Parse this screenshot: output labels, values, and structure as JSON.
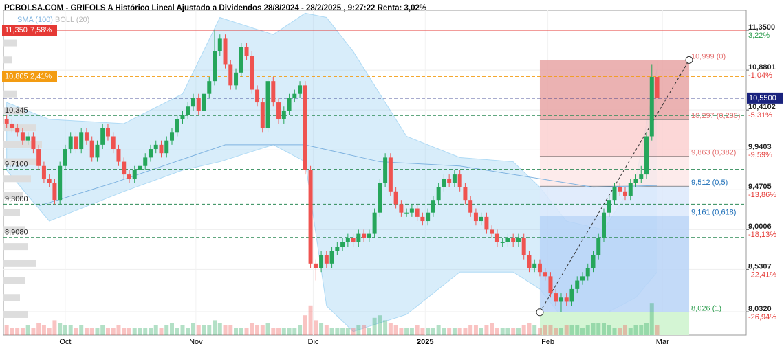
{
  "chart_data": {
    "type": "candlestick",
    "title": "PCBOLSA.COM - GRIFOLS A Histórico Lineal Ajustado a Dividendos 28/8/2024 - 28/2/2025 , 9:27:22 Renta: 3,02%",
    "legend": [
      "SMA (100)",
      "BOLL (20)"
    ],
    "ylim": [
      7.757,
      11.585
    ],
    "xlim": [
      -0.6,
      138.7
    ],
    "yticks": [
      {
        "value": 11.35,
        "label": "11,3500"
      },
      {
        "value": 10.8801,
        "label": "10,8801"
      },
      {
        "value": 10.4102,
        "label": "10,4102"
      },
      {
        "value": 9.9403,
        "label": "9,9403"
      },
      {
        "value": 9.4705,
        "label": "9,4705"
      },
      {
        "value": 9.0006,
        "label": "9,0006"
      },
      {
        "value": 8.5307,
        "label": "8,5307"
      },
      {
        "value": 8.032,
        "label": "8,0320"
      }
    ],
    "ytick_pcts": [
      "3,22%",
      "-1,04%",
      "-5,31%",
      "-9,59%",
      "-13,86%",
      "-18,13%",
      "-22,41%",
      "-26,94%"
    ],
    "xticks": [
      {
        "value": 11,
        "label": "Oct"
      },
      {
        "value": 35.5,
        "label": "Nov"
      },
      {
        "value": 57.5,
        "label": "Dic"
      },
      {
        "value": 78.5,
        "label": "2025"
      },
      {
        "value": 101.5,
        "label": "Feb"
      },
      {
        "value": 123,
        "label": "Mar"
      }
    ],
    "grid": true,
    "up_color": "#26a65b",
    "down_color": "#ef5350",
    "open": [
      10.3,
      10.25,
      10.2,
      10.15,
      10.05,
      10.1,
      9.95,
      9.75,
      9.6,
      9.55,
      9.35,
      9.75,
      9.95,
      10.1,
      9.95,
      10.15,
      10.05,
      9.85,
      10.0,
      10.2,
      10.1,
      9.95,
      9.8,
      9.65,
      9.6,
      9.7,
      9.75,
      9.85,
      9.95,
      10.0,
      9.9,
      10.05,
      10.15,
      10.3,
      10.35,
      10.45,
      10.55,
      10.4,
      10.6,
      10.75,
      11.1,
      11.25,
      10.95,
      10.7,
      10.85,
      11.15,
      11.05,
      10.65,
      10.5,
      10.2,
      10.75,
      10.5,
      10.3,
      10.4,
      10.55,
      10.6,
      10.7,
      9.7,
      8.6,
      8.55,
      8.7,
      8.6,
      8.75,
      8.8,
      8.85,
      8.9,
      8.85,
      8.95,
      8.9,
      8.95,
      9.2,
      9.55,
      9.85,
      9.45,
      9.3,
      9.2,
      9.2,
      9.25,
      9.15,
      9.1,
      9.2,
      9.35,
      9.5,
      9.6,
      9.55,
      9.65,
      9.5,
      9.35,
      9.2,
      9.1,
      9.15,
      9.0,
      8.95,
      8.85,
      8.85,
      8.9,
      8.85,
      8.9,
      8.7,
      8.55,
      8.6,
      8.5,
      8.45,
      8.25,
      8.15,
      8.2,
      8.15,
      8.3,
      8.4,
      8.45,
      8.55,
      8.7,
      8.9,
      9.2,
      9.35,
      9.5,
      9.45,
      9.4,
      9.55,
      9.6,
      9.65,
      10.1,
      10.8
    ],
    "high": [
      10.35,
      10.3,
      10.25,
      10.2,
      10.15,
      10.15,
      10.0,
      9.8,
      9.65,
      9.6,
      9.8,
      10.0,
      10.15,
      10.15,
      10.2,
      10.2,
      10.1,
      10.05,
      10.25,
      10.25,
      10.15,
      10.0,
      9.85,
      9.7,
      9.75,
      9.8,
      9.9,
      10.0,
      10.05,
      10.05,
      10.1,
      10.2,
      10.35,
      10.4,
      10.5,
      10.6,
      10.6,
      10.65,
      10.8,
      11.35,
      11.3,
      11.3,
      11.0,
      10.9,
      11.2,
      11.2,
      11.1,
      10.7,
      10.55,
      10.8,
      10.8,
      10.55,
      10.45,
      10.6,
      10.65,
      10.75,
      10.75,
      9.75,
      8.65,
      8.75,
      8.75,
      8.8,
      8.85,
      8.9,
      8.95,
      8.95,
      9.0,
      9.0,
      9.0,
      9.25,
      9.6,
      9.9,
      9.9,
      9.5,
      9.35,
      9.25,
      9.3,
      9.3,
      9.2,
      9.25,
      9.4,
      9.55,
      9.65,
      9.65,
      9.7,
      9.7,
      9.55,
      9.4,
      9.25,
      9.2,
      9.2,
      9.05,
      9.0,
      8.9,
      8.95,
      8.95,
      8.95,
      8.95,
      8.75,
      8.65,
      8.65,
      8.55,
      8.5,
      8.3,
      8.25,
      8.25,
      8.35,
      8.45,
      8.5,
      8.6,
      8.75,
      8.95,
      9.25,
      9.4,
      9.55,
      9.55,
      9.5,
      9.6,
      9.65,
      9.75,
      10.15,
      10.95,
      10.99
    ],
    "low": [
      10.2,
      10.15,
      10.1,
      10.0,
      10.0,
      9.9,
      9.7,
      9.55,
      9.5,
      9.3,
      9.3,
      9.7,
      9.9,
      9.9,
      9.9,
      10.0,
      9.8,
      9.8,
      9.95,
      10.05,
      9.9,
      9.75,
      9.6,
      9.55,
      9.55,
      9.65,
      9.7,
      9.8,
      9.9,
      9.85,
      9.85,
      10.0,
      10.1,
      10.25,
      10.3,
      10.4,
      10.35,
      10.35,
      10.55,
      10.7,
      11.05,
      10.9,
      10.65,
      10.65,
      10.8,
      11.0,
      10.6,
      10.45,
      10.15,
      10.15,
      10.45,
      10.25,
      10.25,
      10.35,
      10.5,
      10.55,
      9.65,
      8.55,
      8.4,
      8.5,
      8.55,
      8.55,
      8.7,
      8.75,
      8.8,
      8.8,
      8.8,
      8.85,
      8.85,
      8.9,
      9.15,
      9.5,
      9.4,
      9.25,
      9.15,
      9.15,
      9.15,
      9.1,
      9.05,
      9.05,
      9.15,
      9.3,
      9.45,
      9.5,
      9.5,
      9.45,
      9.3,
      9.15,
      9.05,
      9.05,
      8.95,
      8.9,
      8.8,
      8.8,
      8.8,
      8.8,
      8.8,
      8.65,
      8.5,
      8.5,
      8.45,
      8.4,
      8.2,
      8.1,
      8.03,
      8.1,
      8.1,
      8.25,
      8.35,
      8.4,
      8.5,
      8.65,
      8.85,
      9.15,
      9.3,
      9.4,
      9.35,
      9.35,
      9.5,
      9.55,
      9.6,
      10.05,
      10.5
    ],
    "close": [
      10.25,
      10.2,
      10.15,
      10.05,
      10.1,
      9.95,
      9.75,
      9.6,
      9.55,
      9.35,
      9.75,
      9.95,
      10.1,
      9.95,
      10.15,
      10.05,
      9.85,
      10.0,
      10.2,
      10.1,
      9.95,
      9.8,
      9.65,
      9.6,
      9.7,
      9.75,
      9.85,
      9.95,
      10.0,
      9.9,
      10.05,
      10.15,
      10.3,
      10.35,
      10.45,
      10.55,
      10.4,
      10.6,
      10.75,
      11.1,
      11.25,
      10.95,
      10.7,
      10.85,
      11.15,
      11.05,
      10.65,
      10.5,
      10.2,
      10.75,
      10.5,
      10.3,
      10.4,
      10.55,
      10.6,
      10.7,
      9.7,
      8.6,
      8.55,
      8.7,
      8.6,
      8.75,
      8.8,
      8.85,
      8.9,
      8.85,
      8.95,
      8.9,
      8.95,
      9.2,
      9.55,
      9.85,
      9.45,
      9.3,
      9.2,
      9.2,
      9.25,
      9.15,
      9.1,
      9.2,
      9.35,
      9.5,
      9.6,
      9.55,
      9.65,
      9.5,
      9.35,
      9.2,
      9.1,
      9.15,
      9.0,
      8.95,
      8.85,
      8.85,
      8.9,
      8.85,
      8.9,
      8.7,
      8.55,
      8.6,
      8.5,
      8.45,
      8.25,
      8.15,
      8.2,
      8.15,
      8.3,
      8.4,
      8.45,
      8.55,
      8.7,
      8.9,
      9.2,
      9.35,
      9.5,
      9.45,
      9.4,
      9.55,
      9.6,
      9.65,
      10.1,
      10.8,
      10.55
    ],
    "volume": [
      4,
      3,
      3,
      3,
      4,
      3,
      5,
      4,
      3,
      6,
      5,
      4,
      4,
      3,
      4,
      3,
      3,
      3,
      4,
      3,
      3,
      4,
      3,
      3,
      3,
      3,
      3,
      3,
      4,
      3,
      4,
      5,
      3,
      4,
      3,
      5,
      4,
      4,
      4,
      6,
      5,
      4,
      4,
      3,
      3,
      3,
      5,
      4,
      4,
      5,
      3,
      3,
      3,
      3,
      3,
      4,
      8,
      12,
      6,
      5,
      4,
      3,
      3,
      3,
      3,
      3,
      4,
      4,
      3,
      7,
      8,
      6,
      5,
      4,
      3,
      3,
      3,
      4,
      3,
      3,
      3,
      4,
      3,
      3,
      3,
      3,
      3,
      4,
      4,
      3,
      4,
      5,
      3,
      3,
      3,
      3,
      3,
      4,
      5,
      4,
      3,
      4,
      4,
      3,
      3,
      4,
      4,
      4,
      3,
      4,
      5,
      5,
      5,
      4,
      3,
      3,
      4,
      3,
      4,
      4,
      5,
      13,
      4
    ],
    "volume_profile": {
      "prices": [
        11.2,
        11.0,
        10.8,
        10.6,
        10.4,
        10.2,
        10.0,
        9.8,
        9.6,
        9.4,
        9.2,
        9.0,
        8.8,
        8.6,
        8.4,
        8.2,
        8.0
      ],
      "values": [
        5,
        3,
        4,
        5,
        8,
        12,
        14,
        13,
        10,
        7,
        6,
        8,
        9,
        12,
        8,
        6,
        9
      ]
    },
    "bollinger": {
      "x": [
        0,
        8,
        22,
        33,
        40,
        50,
        56,
        60,
        65,
        75,
        85,
        95,
        100,
        105,
        112,
        118,
        122
      ],
      "upper": [
        10.5,
        10.3,
        10.25,
        10.6,
        11.5,
        11.3,
        11.55,
        11.5,
        11.1,
        10.1,
        9.85,
        9.8,
        9.5,
        9.1,
        9.0,
        9.6,
        10.9
      ],
      "lower": [
        9.7,
        9.1,
        9.45,
        9.7,
        9.8,
        10.0,
        9.8,
        8.1,
        7.8,
        8.0,
        8.5,
        8.5,
        8.3,
        7.9,
        8.0,
        8.2,
        8.5
      ],
      "color": "#87c8f0"
    },
    "sma": {
      "x": [
        6,
        20,
        41,
        56,
        70,
        85,
        100,
        110,
        122
      ],
      "values": [
        9.28,
        9.55,
        10.0,
        10.0,
        9.8,
        9.75,
        9.6,
        9.5,
        9.52
      ],
      "color": "#7fb3e0"
    },
    "levels": [
      {
        "value": 11.35,
        "label": "11,350",
        "pct": "7,58%",
        "color": "#e53935",
        "style": "solid",
        "side": "left-box"
      },
      {
        "value": 10.805,
        "label": "10,805",
        "pct": "2,41%",
        "color": "#f39c12",
        "style": "dashed",
        "side": "left-box"
      },
      {
        "value": 10.55,
        "label": "10,5500",
        "color": "#1a237e",
        "style": "dashed",
        "side": "right-box"
      },
      {
        "value": 10.345,
        "label": "10,345",
        "color": "#2e8b57",
        "style": "dashed",
        "side": "left"
      },
      {
        "value": 9.71,
        "label": "9,7100",
        "color": "#2e8b57",
        "style": "dashed",
        "side": "left"
      },
      {
        "value": 9.3,
        "label": "9,3000",
        "color": "#2e8b57",
        "style": "dashed",
        "side": "left"
      },
      {
        "value": 8.908,
        "label": "8,9080",
        "color": "#2e8b57",
        "style": "dashed",
        "side": "left"
      }
    ],
    "fib": {
      "x": [
        100,
        128
      ],
      "levels": [
        {
          "value": 10.999,
          "label": "10,999 (0)"
        },
        {
          "value": 10.297,
          "label": "10,297 (0,236)"
        },
        {
          "value": 9.863,
          "label": "9,863 (0,382)"
        },
        {
          "value": 9.512,
          "label": "9,512 (0,5)"
        },
        {
          "value": 9.161,
          "label": "9,161 (0,618)"
        },
        {
          "value": 8.026,
          "label": "8,026 (1)"
        }
      ],
      "label_colors": [
        "#e57373",
        "#e57373",
        "#e57373",
        "#1e6fb8",
        "#1e6fb8",
        "#2e9e4f"
      ],
      "zone_colors": [
        "#e8a5a5",
        "#fbd0d0",
        "#fde8e8",
        "#dce9fb",
        "#b9d3f7"
      ]
    }
  }
}
